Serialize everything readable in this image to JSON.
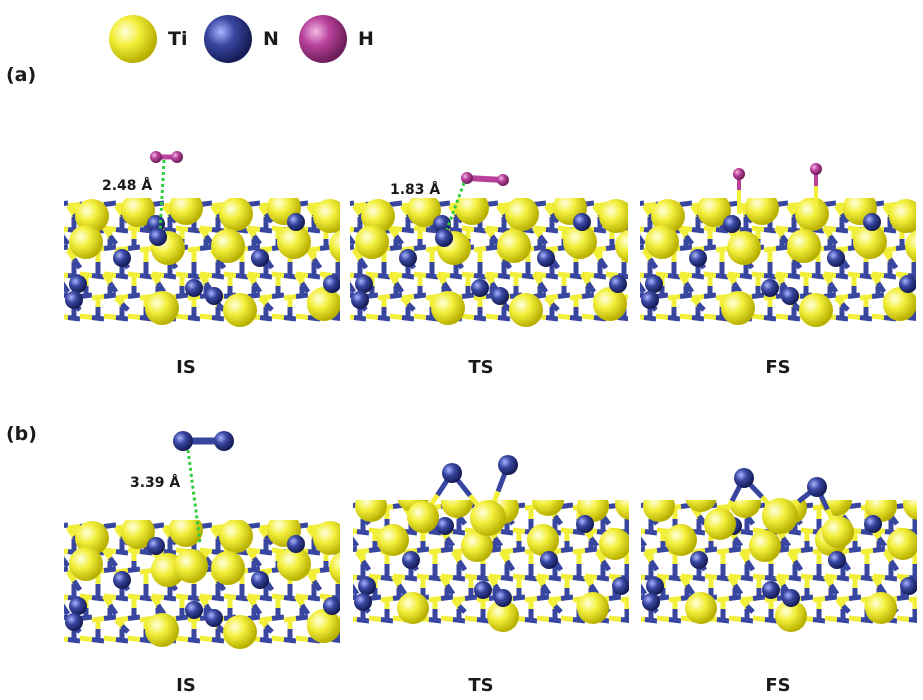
{
  "legend": [
    {
      "symbol": "Ti",
      "color": "#f2ef3a"
    },
    {
      "symbol": "N",
      "color": "#3846a0"
    },
    {
      "symbol": "H",
      "color": "#b8419a"
    }
  ],
  "panels": [
    {
      "label": "(a)",
      "states": [
        "IS",
        "TS",
        "FS"
      ],
      "distances": [
        "2.48 Å",
        "1.83 Å"
      ]
    },
    {
      "label": "(b)",
      "states": [
        "IS",
        "TS",
        "FS"
      ],
      "distances": [
        "3.39 Å"
      ]
    }
  ],
  "colors": {
    "ti": "#f2ef3a",
    "n": "#3846a0",
    "h": "#b8419a",
    "distance_line": "#2ecc40"
  }
}
